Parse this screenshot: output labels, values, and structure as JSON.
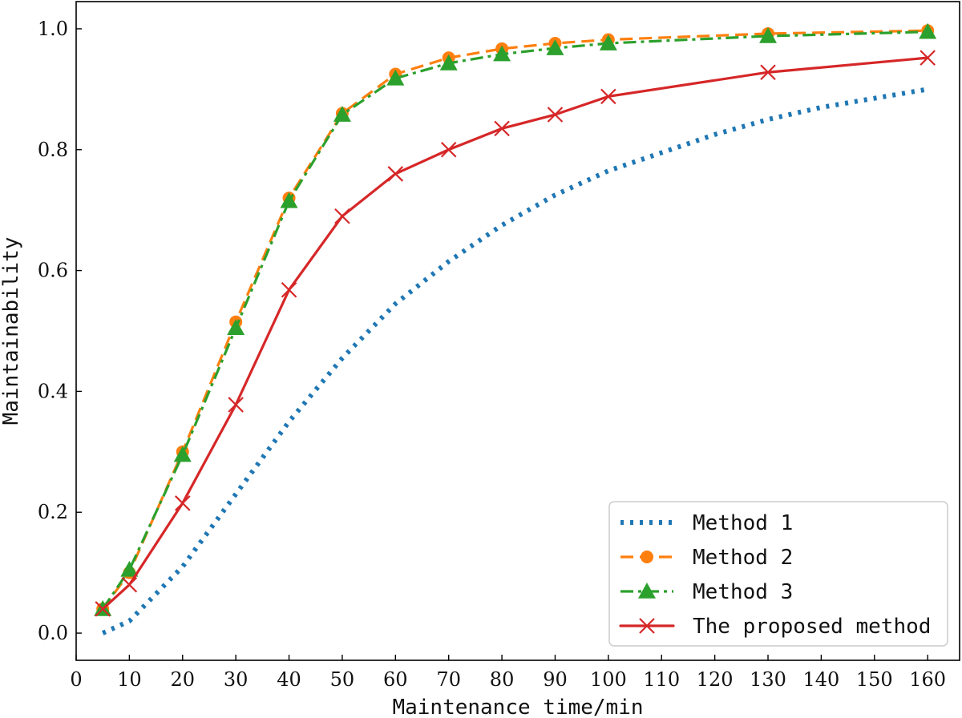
{
  "chart_data": {
    "type": "line",
    "xlabel": "Maintenance time/min",
    "ylabel": "Maintainability",
    "xlim": [
      0,
      166
    ],
    "ylim": [
      -0.045,
      1.045
    ],
    "xticks": [
      0,
      10,
      20,
      30,
      40,
      50,
      60,
      70,
      80,
      90,
      100,
      110,
      120,
      130,
      140,
      150,
      160
    ],
    "xtick_labels": [
      "0",
      "10",
      "20",
      "30",
      "40",
      "50",
      "60",
      "70",
      "80",
      "90",
      "100",
      "110",
      "120",
      "130",
      "140",
      "150",
      "160"
    ],
    "yticks": [
      0.0,
      0.2,
      0.4,
      0.6,
      0.8,
      1.0
    ],
    "ytick_labels": [
      "0.0",
      "0.2",
      "0.4",
      "0.6",
      "0.8",
      "1.0"
    ],
    "legend_position": "bottom-right",
    "series": [
      {
        "name": "Method 1",
        "color": "#1f77b4",
        "style": "dotted",
        "marker": "none",
        "x": [
          5,
          10,
          20,
          30,
          40,
          50,
          60,
          70,
          80,
          90,
          100,
          110,
          120,
          130,
          140,
          150,
          160
        ],
        "y": [
          0.0,
          0.02,
          0.11,
          0.23,
          0.35,
          0.455,
          0.545,
          0.615,
          0.675,
          0.725,
          0.765,
          0.795,
          0.825,
          0.85,
          0.87,
          0.885,
          0.9
        ]
      },
      {
        "name": "Method 2",
        "color": "#ff7f0e",
        "style": "dashed",
        "marker": "circle",
        "x": [
          5,
          10,
          20,
          30,
          40,
          50,
          60,
          70,
          80,
          90,
          100,
          130,
          160
        ],
        "y": [
          0.04,
          0.1,
          0.3,
          0.515,
          0.72,
          0.86,
          0.925,
          0.952,
          0.967,
          0.976,
          0.982,
          0.992,
          0.997
        ]
      },
      {
        "name": "Method 3",
        "color": "#2ca02c",
        "style": "dashdot",
        "marker": "triangle",
        "x": [
          5,
          10,
          20,
          30,
          40,
          50,
          60,
          70,
          80,
          90,
          100,
          130,
          160
        ],
        "y": [
          0.04,
          0.105,
          0.295,
          0.505,
          0.715,
          0.858,
          0.918,
          0.943,
          0.958,
          0.968,
          0.976,
          0.988,
          0.995
        ]
      },
      {
        "name": "The proposed method",
        "color": "#d62728",
        "style": "solid",
        "marker": "x",
        "x": [
          5,
          10,
          20,
          30,
          40,
          50,
          60,
          70,
          80,
          90,
          100,
          130,
          160
        ],
        "y": [
          0.04,
          0.08,
          0.215,
          0.378,
          0.568,
          0.69,
          0.76,
          0.8,
          0.835,
          0.858,
          0.888,
          0.928,
          0.952
        ]
      }
    ]
  }
}
